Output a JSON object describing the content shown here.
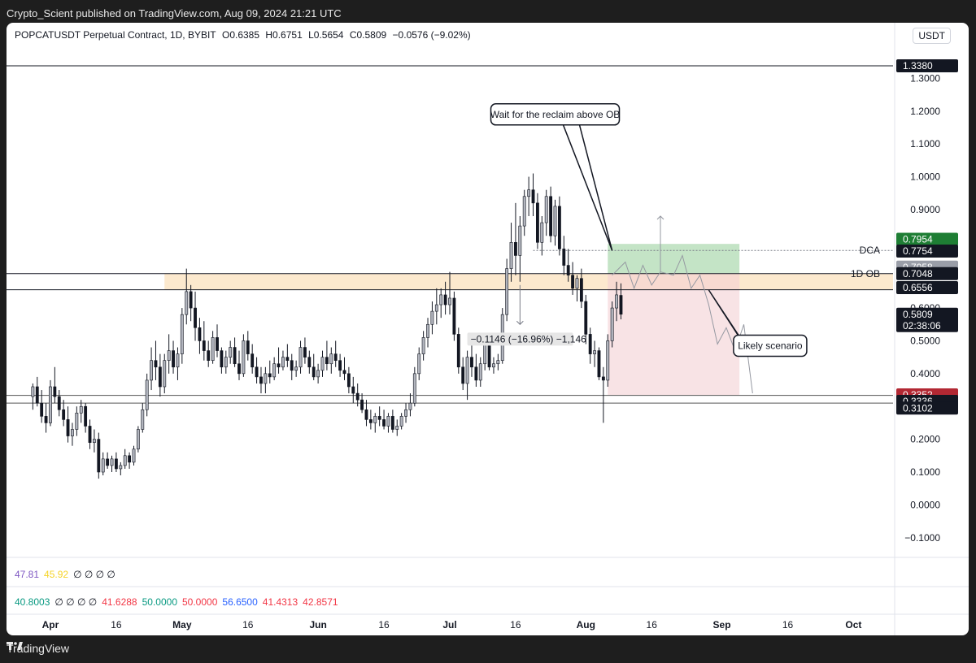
{
  "publisher_line": "Crypto_Scient published on TradingView.com, Aug 09, 2024 21:21 UTC",
  "footer_brand": "TradingView",
  "header": {
    "symbol": "POPCATUSDT Perpetual Contract, 1D, BYBIT",
    "open": "O0.6385",
    "high": "H0.6751",
    "low": "L0.5654",
    "close": "C0.5809",
    "change": "−0.0576 (−9.02%)"
  },
  "currency": "USDT",
  "indicator_rows": [
    {
      "values": [
        {
          "text": "47.81",
          "color": "#7e57c2"
        },
        {
          "text": "45.92",
          "color": "#f5d327"
        },
        {
          "text": "∅ ∅ ∅ ∅",
          "color": "#131722"
        }
      ]
    },
    {
      "values": [
        {
          "text": "40.8003",
          "color": "#089981"
        },
        {
          "text": "∅ ∅ ∅ ∅",
          "color": "#131722"
        },
        {
          "text": "41.6288",
          "color": "#f23645"
        },
        {
          "text": "50.0000",
          "color": "#089981"
        },
        {
          "text": "50.0000",
          "color": "#f23645"
        },
        {
          "text": "56.6500",
          "color": "#2962ff"
        },
        {
          "text": "41.4313",
          "color": "#f23645"
        },
        {
          "text": "42.8571",
          "color": "#f23645"
        }
      ]
    }
  ],
  "chart_data": {
    "type": "candlestick",
    "y_ticks": [
      "1.3000",
      "1.2000",
      "1.1000",
      "1.0000",
      "0.9000",
      "0.8000",
      "0.7000",
      "0.6000",
      "0.5000",
      "0.4000",
      "0.3000",
      "0.2000",
      "0.1000",
      "0.0000",
      "−0.1000"
    ],
    "y_tick_values": [
      1.3,
      1.2,
      1.1,
      1.0,
      0.9,
      0.8,
      0.7,
      0.6,
      0.5,
      0.4,
      0.3,
      0.2,
      0.1,
      0.0,
      -0.1
    ],
    "ylim": [
      -0.16,
      1.4
    ],
    "x_ticks": [
      {
        "label": "Apr",
        "date": "2024-04-01",
        "bold": true
      },
      {
        "label": "16",
        "date": "2024-04-16",
        "bold": false
      },
      {
        "label": "May",
        "date": "2024-05-01",
        "bold": true
      },
      {
        "label": "16",
        "date": "2024-05-16",
        "bold": false
      },
      {
        "label": "Jun",
        "date": "2024-06-01",
        "bold": true
      },
      {
        "label": "16",
        "date": "2024-06-16",
        "bold": false
      },
      {
        "label": "Jul",
        "date": "2024-07-01",
        "bold": true
      },
      {
        "label": "16",
        "date": "2024-07-16",
        "bold": false
      },
      {
        "label": "Aug",
        "date": "2024-08-01",
        "bold": true
      },
      {
        "label": "16",
        "date": "2024-08-16",
        "bold": false
      },
      {
        "label": "Sep",
        "date": "2024-09-01",
        "bold": true
      },
      {
        "label": "16",
        "date": "2024-09-16",
        "bold": false
      },
      {
        "label": "Oct",
        "date": "2024-10-01",
        "bold": true
      }
    ],
    "xlim": [
      "2024-03-22",
      "2024-10-10"
    ],
    "levels": [
      {
        "value": 1.338,
        "label": "1.3380",
        "bg": "#131722",
        "fg": "#ffffff",
        "line": "#131722",
        "dash": false,
        "tag": ""
      },
      {
        "value": 0.7954,
        "label": "0.7954",
        "bg": "#1e7e34",
        "fg": "#ffffff",
        "line": "",
        "dash": false,
        "tag": ""
      },
      {
        "value": 0.7754,
        "label": "0.7754",
        "bg": "#131722",
        "fg": "#ffffff",
        "line": "#787b86",
        "dash": true,
        "tag": "DCA"
      },
      {
        "value": 0.7058,
        "label": "0.7058",
        "bg": "#9a9ea8",
        "fg": "#ffffff",
        "line": "",
        "dash": false,
        "tag": ""
      },
      {
        "value": 0.7048,
        "label": "0.7048",
        "bg": "#131722",
        "fg": "#ffffff",
        "line": "#131722",
        "dash": false,
        "tag": "1D OB"
      },
      {
        "value": 0.6556,
        "label": "0.6556",
        "bg": "#131722",
        "fg": "#ffffff",
        "line": "#131722",
        "dash": false,
        "tag": ""
      },
      {
        "value": 0.3352,
        "label": "0.3352",
        "bg": "#b22833",
        "fg": "#ffffff",
        "line": "",
        "dash": false,
        "tag": ""
      },
      {
        "value": 0.3336,
        "label": "0.3336",
        "bg": "#131722",
        "fg": "#ffffff",
        "line": "#555555",
        "dash": false,
        "tag": ""
      },
      {
        "value": 0.3102,
        "label": "0.3102",
        "bg": "#131722",
        "fg": "#ffffff",
        "line": "#555555",
        "dash": false,
        "tag": ""
      }
    ],
    "last_price": {
      "value": 0.5809,
      "label": "0.5809",
      "countdown": "02:38:06",
      "bg": "#131722",
      "fg": "#ffffff"
    },
    "ob_zone": {
      "top": 0.7048,
      "bottom": 0.6556,
      "start": "2024-04-27",
      "color": "#fbe3c2"
    },
    "position": {
      "start": "2024-08-06",
      "end": "2024-09-05",
      "entry": 0.7058,
      "target": 0.7954,
      "stop": 0.3352
    },
    "annotations": [
      {
        "text": "Wait for the reclaim above OB",
        "date": "2024-07-25",
        "value": 1.19
      },
      {
        "text": "Likely scenario",
        "date": "2024-09-12",
        "value": 0.485
      }
    ],
    "measure_label": "−0.1146 (−16.96%) −1,146",
    "candles": [
      [
        "2024-03-28",
        0.33,
        0.37,
        0.29,
        0.36
      ],
      [
        "2024-03-29",
        0.36,
        0.39,
        0.3,
        0.31
      ],
      [
        "2024-03-30",
        0.31,
        0.35,
        0.25,
        0.27
      ],
      [
        "2024-03-31",
        0.27,
        0.31,
        0.22,
        0.25
      ],
      [
        "2024-04-01",
        0.25,
        0.38,
        0.24,
        0.36
      ],
      [
        "2024-04-02",
        0.36,
        0.42,
        0.31,
        0.33
      ],
      [
        "2024-04-03",
        0.33,
        0.35,
        0.27,
        0.29
      ],
      [
        "2024-04-04",
        0.29,
        0.32,
        0.24,
        0.26
      ],
      [
        "2024-04-05",
        0.26,
        0.3,
        0.19,
        0.21
      ],
      [
        "2024-04-06",
        0.21,
        0.25,
        0.18,
        0.23
      ],
      [
        "2024-04-07",
        0.23,
        0.3,
        0.21,
        0.28
      ],
      [
        "2024-04-08",
        0.28,
        0.32,
        0.25,
        0.3
      ],
      [
        "2024-04-09",
        0.3,
        0.31,
        0.22,
        0.24
      ],
      [
        "2024-04-10",
        0.24,
        0.26,
        0.17,
        0.19
      ],
      [
        "2024-04-11",
        0.19,
        0.23,
        0.16,
        0.2
      ],
      [
        "2024-04-12",
        0.2,
        0.22,
        0.08,
        0.1
      ],
      [
        "2024-04-13",
        0.1,
        0.16,
        0.09,
        0.14
      ],
      [
        "2024-04-14",
        0.14,
        0.16,
        0.11,
        0.12
      ],
      [
        "2024-04-15",
        0.12,
        0.15,
        0.1,
        0.14
      ],
      [
        "2024-04-16",
        0.14,
        0.16,
        0.1,
        0.11
      ],
      [
        "2024-04-17",
        0.11,
        0.13,
        0.09,
        0.12
      ],
      [
        "2024-04-18",
        0.12,
        0.17,
        0.11,
        0.15
      ],
      [
        "2024-04-19",
        0.15,
        0.16,
        0.11,
        0.13
      ],
      [
        "2024-04-20",
        0.13,
        0.18,
        0.12,
        0.17
      ],
      [
        "2024-04-21",
        0.17,
        0.24,
        0.16,
        0.23
      ],
      [
        "2024-04-22",
        0.23,
        0.31,
        0.22,
        0.29
      ],
      [
        "2024-04-23",
        0.29,
        0.4,
        0.27,
        0.38
      ],
      [
        "2024-04-24",
        0.38,
        0.48,
        0.35,
        0.44
      ],
      [
        "2024-04-25",
        0.44,
        0.5,
        0.38,
        0.42
      ],
      [
        "2024-04-26",
        0.42,
        0.46,
        0.33,
        0.36
      ],
      [
        "2024-04-27",
        0.36,
        0.46,
        0.34,
        0.44
      ],
      [
        "2024-04-28",
        0.44,
        0.52,
        0.4,
        0.47
      ],
      [
        "2024-04-29",
        0.47,
        0.5,
        0.4,
        0.42
      ],
      [
        "2024-04-30",
        0.42,
        0.48,
        0.38,
        0.46
      ],
      [
        "2024-05-01",
        0.46,
        0.6,
        0.43,
        0.58
      ],
      [
        "2024-05-02",
        0.58,
        0.72,
        0.55,
        0.65
      ],
      [
        "2024-05-03",
        0.65,
        0.67,
        0.56,
        0.6
      ],
      [
        "2024-05-04",
        0.6,
        0.65,
        0.5,
        0.54
      ],
      [
        "2024-05-05",
        0.54,
        0.57,
        0.46,
        0.5
      ],
      [
        "2024-05-06",
        0.5,
        0.56,
        0.44,
        0.47
      ],
      [
        "2024-05-07",
        0.47,
        0.5,
        0.42,
        0.44
      ],
      [
        "2024-05-08",
        0.44,
        0.53,
        0.43,
        0.51
      ],
      [
        "2024-05-09",
        0.51,
        0.55,
        0.45,
        0.47
      ],
      [
        "2024-05-10",
        0.47,
        0.48,
        0.4,
        0.42
      ],
      [
        "2024-05-11",
        0.42,
        0.47,
        0.4,
        0.45
      ],
      [
        "2024-05-12",
        0.45,
        0.5,
        0.43,
        0.48
      ],
      [
        "2024-05-13",
        0.48,
        0.51,
        0.42,
        0.43
      ],
      [
        "2024-05-14",
        0.43,
        0.47,
        0.38,
        0.4
      ],
      [
        "2024-05-15",
        0.4,
        0.52,
        0.39,
        0.5
      ],
      [
        "2024-05-16",
        0.5,
        0.53,
        0.44,
        0.46
      ],
      [
        "2024-05-17",
        0.46,
        0.49,
        0.4,
        0.42
      ],
      [
        "2024-05-18",
        0.42,
        0.45,
        0.37,
        0.39
      ],
      [
        "2024-05-19",
        0.39,
        0.42,
        0.34,
        0.37
      ],
      [
        "2024-05-20",
        0.37,
        0.42,
        0.34,
        0.4
      ],
      [
        "2024-05-21",
        0.4,
        0.44,
        0.37,
        0.39
      ],
      [
        "2024-05-22",
        0.39,
        0.45,
        0.38,
        0.43
      ],
      [
        "2024-05-23",
        0.43,
        0.48,
        0.4,
        0.42
      ],
      [
        "2024-05-24",
        0.42,
        0.47,
        0.41,
        0.45
      ],
      [
        "2024-05-25",
        0.45,
        0.49,
        0.42,
        0.44
      ],
      [
        "2024-05-26",
        0.44,
        0.46,
        0.38,
        0.41
      ],
      [
        "2024-05-27",
        0.41,
        0.44,
        0.39,
        0.42
      ],
      [
        "2024-05-28",
        0.42,
        0.5,
        0.4,
        0.48
      ],
      [
        "2024-05-29",
        0.48,
        0.51,
        0.43,
        0.45
      ],
      [
        "2024-05-30",
        0.45,
        0.47,
        0.4,
        0.42
      ],
      [
        "2024-05-31",
        0.42,
        0.46,
        0.38,
        0.39
      ],
      [
        "2024-06-01",
        0.39,
        0.43,
        0.37,
        0.41
      ],
      [
        "2024-06-02",
        0.41,
        0.47,
        0.39,
        0.45
      ],
      [
        "2024-06-03",
        0.45,
        0.5,
        0.41,
        0.43
      ],
      [
        "2024-06-04",
        0.43,
        0.48,
        0.4,
        0.46
      ],
      [
        "2024-06-05",
        0.46,
        0.5,
        0.42,
        0.44
      ],
      [
        "2024-06-06",
        0.44,
        0.46,
        0.39,
        0.41
      ],
      [
        "2024-06-07",
        0.41,
        0.45,
        0.38,
        0.4
      ],
      [
        "2024-06-08",
        0.4,
        0.42,
        0.34,
        0.36
      ],
      [
        "2024-06-09",
        0.36,
        0.39,
        0.31,
        0.34
      ],
      [
        "2024-06-10",
        0.34,
        0.37,
        0.3,
        0.32
      ],
      [
        "2024-06-11",
        0.32,
        0.34,
        0.28,
        0.29
      ],
      [
        "2024-06-12",
        0.29,
        0.32,
        0.24,
        0.26
      ],
      [
        "2024-06-13",
        0.26,
        0.29,
        0.23,
        0.25
      ],
      [
        "2024-06-14",
        0.25,
        0.28,
        0.22,
        0.27
      ],
      [
        "2024-06-15",
        0.27,
        0.3,
        0.24,
        0.26
      ],
      [
        "2024-06-16",
        0.26,
        0.29,
        0.23,
        0.24
      ],
      [
        "2024-06-17",
        0.24,
        0.28,
        0.22,
        0.27
      ],
      [
        "2024-06-18",
        0.27,
        0.29,
        0.22,
        0.23
      ],
      [
        "2024-06-19",
        0.23,
        0.26,
        0.21,
        0.24
      ],
      [
        "2024-06-20",
        0.24,
        0.28,
        0.23,
        0.27
      ],
      [
        "2024-06-21",
        0.27,
        0.31,
        0.25,
        0.29
      ],
      [
        "2024-06-22",
        0.29,
        0.34,
        0.27,
        0.31
      ],
      [
        "2024-06-23",
        0.31,
        0.42,
        0.3,
        0.4
      ],
      [
        "2024-06-24",
        0.4,
        0.48,
        0.38,
        0.46
      ],
      [
        "2024-06-25",
        0.46,
        0.53,
        0.44,
        0.51
      ],
      [
        "2024-06-26",
        0.51,
        0.57,
        0.48,
        0.55
      ],
      [
        "2024-06-27",
        0.55,
        0.62,
        0.52,
        0.59
      ],
      [
        "2024-06-28",
        0.59,
        0.66,
        0.55,
        0.61
      ],
      [
        "2024-06-29",
        0.61,
        0.66,
        0.57,
        0.64
      ],
      [
        "2024-06-30",
        0.64,
        0.68,
        0.58,
        0.61
      ],
      [
        "2024-07-01",
        0.61,
        0.71,
        0.58,
        0.63
      ],
      [
        "2024-07-02",
        0.63,
        0.65,
        0.5,
        0.52
      ],
      [
        "2024-07-03",
        0.52,
        0.54,
        0.4,
        0.42
      ],
      [
        "2024-07-04",
        0.42,
        0.45,
        0.35,
        0.37
      ],
      [
        "2024-07-05",
        0.37,
        0.47,
        0.32,
        0.45
      ],
      [
        "2024-07-06",
        0.45,
        0.5,
        0.39,
        0.42
      ],
      [
        "2024-07-07",
        0.42,
        0.46,
        0.36,
        0.38
      ],
      [
        "2024-07-08",
        0.38,
        0.45,
        0.36,
        0.43
      ],
      [
        "2024-07-09",
        0.43,
        0.52,
        0.41,
        0.5
      ],
      [
        "2024-07-10",
        0.5,
        0.51,
        0.41,
        0.42
      ],
      [
        "2024-07-11",
        0.42,
        0.45,
        0.4,
        0.43
      ],
      [
        "2024-07-12",
        0.43,
        0.46,
        0.41,
        0.44
      ],
      [
        "2024-07-13",
        0.44,
        0.6,
        0.43,
        0.58
      ],
      [
        "2024-07-14",
        0.58,
        0.75,
        0.56,
        0.72
      ],
      [
        "2024-07-15",
        0.72,
        0.86,
        0.68,
        0.8
      ],
      [
        "2024-07-16",
        0.8,
        0.92,
        0.7,
        0.76
      ],
      [
        "2024-07-17",
        0.76,
        0.88,
        0.68,
        0.85
      ],
      [
        "2024-07-18",
        0.85,
        0.96,
        0.82,
        0.94
      ],
      [
        "2024-07-19",
        0.94,
        1.0,
        0.88,
        0.96
      ],
      [
        "2024-07-20",
        0.96,
        1.01,
        0.88,
        0.92
      ],
      [
        "2024-07-21",
        0.92,
        0.95,
        0.78,
        0.8
      ],
      [
        "2024-07-22",
        0.8,
        0.88,
        0.76,
        0.86
      ],
      [
        "2024-07-23",
        0.86,
        0.96,
        0.82,
        0.94
      ],
      [
        "2024-07-24",
        0.94,
        0.97,
        0.8,
        0.82
      ],
      [
        "2024-07-25",
        0.82,
        0.93,
        0.79,
        0.91
      ],
      [
        "2024-07-26",
        0.91,
        0.94,
        0.76,
        0.78
      ],
      [
        "2024-07-27",
        0.78,
        0.82,
        0.7,
        0.73
      ],
      [
        "2024-07-28",
        0.73,
        0.78,
        0.68,
        0.7
      ],
      [
        "2024-07-29",
        0.7,
        0.74,
        0.64,
        0.66
      ],
      [
        "2024-07-30",
        0.66,
        0.7,
        0.62,
        0.69
      ],
      [
        "2024-07-31",
        0.69,
        0.72,
        0.6,
        0.62
      ],
      [
        "2024-08-01",
        0.62,
        0.64,
        0.49,
        0.52
      ],
      [
        "2024-08-02",
        0.52,
        0.54,
        0.43,
        0.46
      ],
      [
        "2024-08-03",
        0.46,
        0.5,
        0.42,
        0.47
      ],
      [
        "2024-08-04",
        0.47,
        0.48,
        0.38,
        0.39
      ],
      [
        "2024-08-05",
        0.39,
        0.42,
        0.25,
        0.38
      ],
      [
        "2024-08-06",
        0.38,
        0.52,
        0.36,
        0.5
      ],
      [
        "2024-08-07",
        0.5,
        0.62,
        0.48,
        0.6
      ],
      [
        "2024-08-08",
        0.6,
        0.68,
        0.56,
        0.64
      ],
      [
        "2024-08-09",
        0.6385,
        0.6751,
        0.5654,
        0.5809
      ]
    ]
  }
}
